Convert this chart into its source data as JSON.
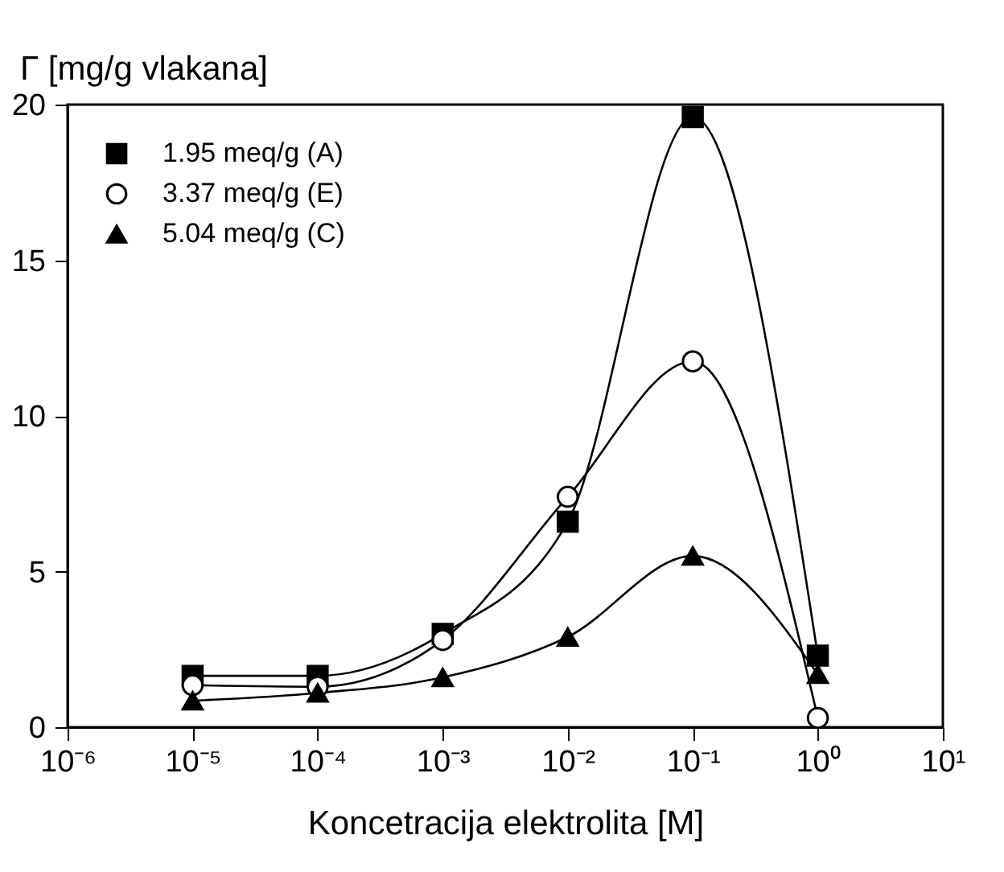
{
  "chart_data": {
    "type": "line",
    "xlabel": "Koncetracija elektrolita [M]",
    "ylabel": "Γ [mg/g vlakana]",
    "x": [
      1e-05,
      0.0001,
      0.001,
      0.01,
      0.1,
      1
    ],
    "series": [
      {
        "name": "1.95 meq/g (A)",
        "color": "#000000",
        "marker": "square",
        "values": [
          1.65,
          1.65,
          3.0,
          6.6,
          19.6,
          2.3
        ]
      },
      {
        "name": "3.37 meq/g (E)",
        "color": "#000000",
        "marker": "circle",
        "values": [
          1.35,
          1.3,
          2.8,
          7.4,
          11.75,
          0.3
        ]
      },
      {
        "name": "5.04 meq/g (C)",
        "color": "#000000",
        "marker": "triangle",
        "values": [
          0.85,
          1.1,
          1.6,
          2.9,
          5.5,
          1.7
        ]
      }
    ],
    "log": "x",
    "xlim": [
      1e-06,
      10
    ],
    "xticks": [
      {
        "value": 1e-06,
        "label": "10⁻⁶"
      },
      {
        "value": 1e-05,
        "label": "10⁻⁵"
      },
      {
        "value": 0.0001,
        "label": "10⁻⁴"
      },
      {
        "value": 0.001,
        "label": "10⁻³"
      },
      {
        "value": 0.01,
        "label": "10⁻²"
      },
      {
        "value": 0.1,
        "label": "10⁻¹"
      },
      {
        "value": 1,
        "label": "10⁰"
      },
      {
        "value": 10,
        "label": "10¹"
      }
    ],
    "ylim": [
      0,
      20
    ],
    "yticks": [
      0,
      5,
      10,
      15,
      20
    ],
    "grid": false,
    "legend": "top left",
    "line_style": "solid"
  }
}
